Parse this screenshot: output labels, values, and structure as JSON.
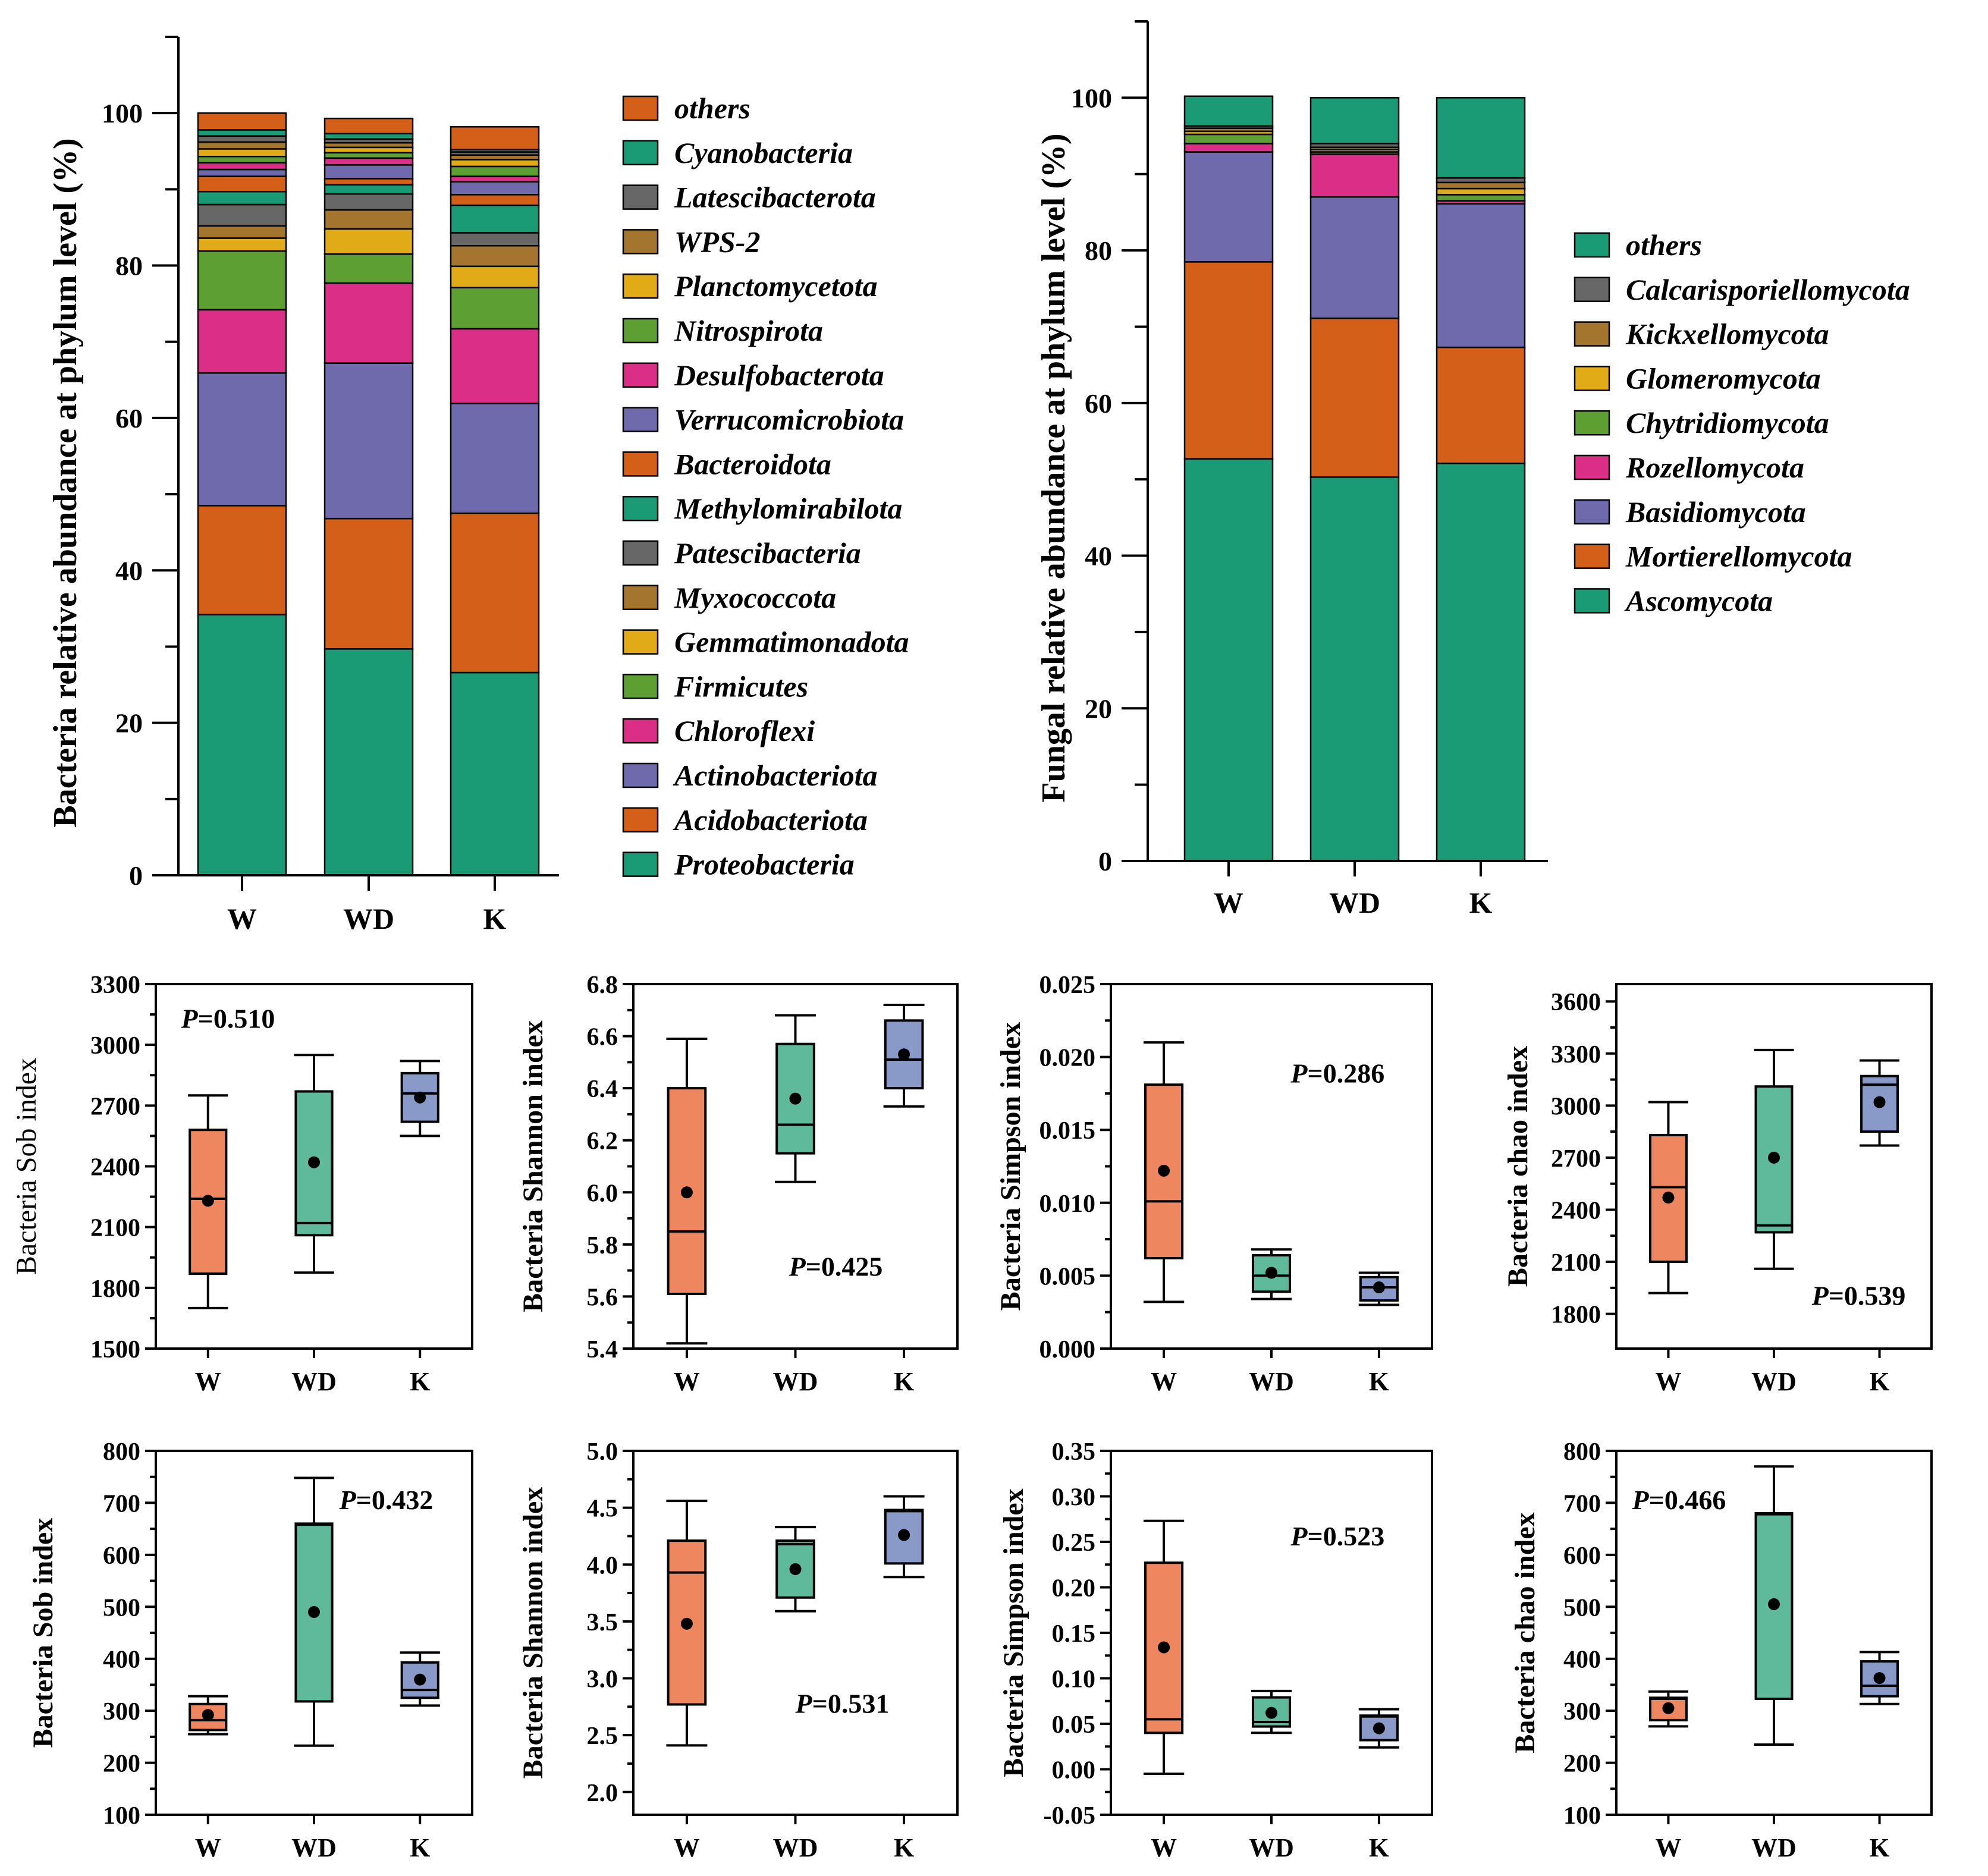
{
  "colors": {
    "green": "#1b9a76",
    "orange": "#d35f18",
    "purple": "#6e6aab",
    "pink": "#db2f87",
    "lightgreen": "#5e9f34",
    "yellow": "#e0ab17",
    "brown": "#a3752f",
    "gray": "#676767",
    "box_w": "#ee8760",
    "box_wd": "#5fba9c",
    "box_k": "#8a9ac8"
  },
  "chart_data": [
    {
      "id": "bacteria-phylum",
      "type": "bar",
      "stacked": true,
      "ylabel": "Bacteria relative abundance at phylum level (%)",
      "ylim": [
        0,
        110
      ],
      "yticks": [
        0,
        20,
        40,
        60,
        80,
        100
      ],
      "categories": [
        "W",
        "WD",
        "K"
      ],
      "series": [
        {
          "name": "Proteobacteria",
          "color": "green",
          "values": [
            34.2,
            29.7,
            26.6
          ]
        },
        {
          "name": "Acidobacteriota",
          "color": "orange",
          "values": [
            14.3,
            17.1,
            20.9
          ]
        },
        {
          "name": "Actinobacteriota",
          "color": "purple",
          "values": [
            17.4,
            20.4,
            14.4
          ]
        },
        {
          "name": "Chloroflexi",
          "color": "pink",
          "values": [
            8.3,
            10.5,
            9.8
          ]
        },
        {
          "name": "Firmicutes",
          "color": "lightgreen",
          "values": [
            7.7,
            3.8,
            5.4
          ]
        },
        {
          "name": "Gemmatimonadota",
          "color": "yellow",
          "values": [
            1.7,
            3.3,
            2.8
          ]
        },
        {
          "name": "Myxococcota",
          "color": "brown",
          "values": [
            1.6,
            2.5,
            2.7
          ]
        },
        {
          "name": "Patescibacteria",
          "color": "gray",
          "values": [
            2.8,
            2.1,
            1.7
          ]
        },
        {
          "name": "Methylomirabilota",
          "color": "green",
          "values": [
            1.7,
            1.2,
            3.6
          ]
        },
        {
          "name": "Bacteroidota",
          "color": "orange",
          "values": [
            2.0,
            0.8,
            1.4
          ]
        },
        {
          "name": "Verrucomicrobiota",
          "color": "purple",
          "values": [
            0.9,
            1.8,
            1.7
          ]
        },
        {
          "name": "Desulfobacterota",
          "color": "pink",
          "values": [
            0.9,
            0.9,
            0.7
          ]
        },
        {
          "name": "Nitrospirota",
          "color": "lightgreen",
          "values": [
            0.8,
            0.7,
            1.3
          ]
        },
        {
          "name": "Planctomycetota",
          "color": "yellow",
          "values": [
            1.0,
            0.7,
            0.9
          ]
        },
        {
          "name": "WPS-2",
          "color": "brown",
          "values": [
            0.9,
            0.6,
            0.6
          ]
        },
        {
          "name": "Latescibacterota",
          "color": "gray",
          "values": [
            0.8,
            0.5,
            0.4
          ]
        },
        {
          "name": "Cyanobacteria",
          "color": "green",
          "values": [
            0.8,
            0.7,
            0.3
          ]
        },
        {
          "name": "others",
          "color": "orange",
          "values": [
            2.2,
            2.0,
            3.0
          ]
        }
      ],
      "legend": [
        "others",
        "Cyanobacteria",
        "Latescibacterota",
        "WPS-2",
        "Planctomycetota",
        "Nitrospirota",
        "Desulfobacterota",
        "Verrucomicrobiota",
        "Bacteroidota",
        "Methylomirabilota",
        "Patescibacteria",
        "Myxococcota",
        "Gemmatimonadota",
        "Firmicutes",
        "Chloroflexi",
        "Actinobacteriota",
        "Acidobacteriota",
        "Proteobacteria"
      ]
    },
    {
      "id": "fungi-phylum",
      "type": "bar",
      "stacked": true,
      "ylabel": "Fungal relative abundance at phylum level (%)",
      "ylim": [
        0,
        110
      ],
      "yticks": [
        0,
        20,
        40,
        60,
        80,
        100
      ],
      "categories": [
        "W",
        "WD",
        "K"
      ],
      "series": [
        {
          "name": "Ascomycota",
          "color": "green",
          "values": [
            52.7,
            50.3,
            52.1
          ]
        },
        {
          "name": "Mortierellomycota",
          "color": "orange",
          "values": [
            25.8,
            20.8,
            15.2
          ]
        },
        {
          "name": "Basidiomycota",
          "color": "purple",
          "values": [
            14.4,
            15.9,
            18.8
          ]
        },
        {
          "name": "Rozellomycota",
          "color": "pink",
          "values": [
            1.1,
            5.6,
            0.4
          ]
        },
        {
          "name": "Chytridiomycota",
          "color": "lightgreen",
          "values": [
            1.2,
            0.3,
            0.8
          ]
        },
        {
          "name": "Glomeromycota",
          "color": "yellow",
          "values": [
            0.4,
            0.3,
            0.8
          ]
        },
        {
          "name": "Kickxellomycota",
          "color": "brown",
          "values": [
            0.4,
            0.3,
            0.8
          ]
        },
        {
          "name": "Calcarisporiellomycota",
          "color": "gray",
          "values": [
            0.3,
            0.5,
            0.6
          ]
        },
        {
          "name": "others",
          "color": "green",
          "values": [
            3.9,
            6.0,
            10.5
          ]
        }
      ],
      "legend": [
        "others",
        "Calcarisporiellomycota",
        "Kickxellomycota",
        "Glomeromycota",
        "Chytridiomycota",
        "Rozellomycota",
        "Basidiomycota",
        "Mortierellomycota",
        "Ascomycota"
      ]
    },
    {
      "id": "bact-sob",
      "type": "box",
      "ylabel": "Bacteria Sob index",
      "ylabel_bold": false,
      "ylim": [
        1500,
        3300
      ],
      "yticks": [
        1500,
        1800,
        2100,
        2400,
        2700,
        3000,
        3300
      ],
      "categories": [
        "W",
        "WD",
        "K"
      ],
      "boxes": [
        {
          "min": 1700,
          "q1": 1870,
          "median": 2240,
          "q3": 2580,
          "max": 2750,
          "mean": 2230
        },
        {
          "min": 1875,
          "q1": 2060,
          "median": 2120,
          "q3": 2770,
          "max": 2950,
          "mean": 2420
        },
        {
          "min": 2550,
          "q1": 2620,
          "median": 2760,
          "q3": 2860,
          "max": 2920,
          "mean": 2740
        }
      ],
      "p_prefix": "P",
      "p_value": "=0.510",
      "p_pos": [
        0.08,
        0.88
      ]
    },
    {
      "id": "bact-shannon",
      "type": "box",
      "ylabel": "Bacteria Shannon index",
      "ylabel_bold": true,
      "ylim": [
        5.4,
        6.8
      ],
      "yticks": [
        5.4,
        5.6,
        5.8,
        6.0,
        6.2,
        6.4,
        6.6,
        6.8
      ],
      "ydec": 1,
      "categories": [
        "W",
        "WD",
        "K"
      ],
      "boxes": [
        {
          "min": 5.42,
          "q1": 5.61,
          "median": 5.85,
          "q3": 6.4,
          "max": 6.59,
          "mean": 6.0
        },
        {
          "min": 6.04,
          "q1": 6.15,
          "median": 6.26,
          "q3": 6.57,
          "max": 6.68,
          "mean": 6.36
        },
        {
          "min": 6.33,
          "q1": 6.4,
          "median": 6.51,
          "q3": 6.66,
          "max": 6.72,
          "mean": 6.53
        }
      ],
      "p_prefix": "P",
      "p_value": "=0.425",
      "p_pos": [
        0.48,
        0.2
      ]
    },
    {
      "id": "bact-simpson",
      "type": "box",
      "ylabel": "Bacteria Simpson index",
      "ylabel_bold": true,
      "ylim": [
        0.0,
        0.025
      ],
      "yticks": [
        0.0,
        0.005,
        0.01,
        0.015,
        0.02,
        0.025
      ],
      "ydec": 3,
      "categories": [
        "W",
        "WD",
        "K"
      ],
      "boxes": [
        {
          "min": 0.0032,
          "q1": 0.0062,
          "median": 0.0101,
          "q3": 0.0181,
          "max": 0.021,
          "mean": 0.0122
        },
        {
          "min": 0.0034,
          "q1": 0.0039,
          "median": 0.005,
          "q3": 0.0064,
          "max": 0.0068,
          "mean": 0.0052
        },
        {
          "min": 0.003,
          "q1": 0.0033,
          "median": 0.0042,
          "q3": 0.0049,
          "max": 0.0052,
          "mean": 0.0042
        }
      ],
      "p_prefix": "P",
      "p_value": "=0.286",
      "p_pos": [
        0.56,
        0.73
      ]
    },
    {
      "id": "bact-chao",
      "type": "box",
      "ylabel": "Bacteria chao index",
      "ylabel_bold": true,
      "ylim": [
        1600,
        3700
      ],
      "yticks": [
        1800,
        2100,
        2400,
        2700,
        3000,
        3300,
        3600
      ],
      "categories": [
        "W",
        "WD",
        "K"
      ],
      "boxes": [
        {
          "min": 1920,
          "q1": 2100,
          "median": 2530,
          "q3": 2830,
          "max": 3020,
          "mean": 2470
        },
        {
          "min": 2060,
          "q1": 2270,
          "median": 2310,
          "q3": 3110,
          "max": 3320,
          "mean": 2700
        },
        {
          "min": 2770,
          "q1": 2850,
          "median": 3120,
          "q3": 3170,
          "max": 3260,
          "mean": 3020
        }
      ],
      "p_prefix": "P",
      "p_value": "=0.539",
      "p_pos": [
        0.62,
        0.12
      ]
    },
    {
      "id": "fung-sob",
      "type": "box",
      "ylabel": "Bacteria Sob index",
      "ylabel_bold": true,
      "ylim": [
        100,
        800
      ],
      "yticks": [
        100,
        200,
        300,
        400,
        500,
        600,
        700,
        800
      ],
      "categories": [
        "W",
        "WD",
        "K"
      ],
      "boxes": [
        {
          "min": 255,
          "q1": 263,
          "median": 282,
          "q3": 313,
          "max": 328,
          "mean": 292
        },
        {
          "min": 233,
          "q1": 318,
          "median": 658,
          "q3": 660,
          "max": 748,
          "mean": 490
        },
        {
          "min": 310,
          "q1": 325,
          "median": 340,
          "q3": 393,
          "max": 412,
          "mean": 360
        }
      ],
      "p_prefix": "P",
      "p_value": "=0.432",
      "p_pos": [
        0.58,
        0.84
      ]
    },
    {
      "id": "fung-shannon",
      "type": "box",
      "ylabel": "Bacteria Shannon index",
      "ylabel_bold": true,
      "ylim": [
        1.8,
        5.0
      ],
      "yticks": [
        2.0,
        2.5,
        3.0,
        3.5,
        4.0,
        4.5,
        5.0
      ],
      "ydec": 1,
      "categories": [
        "W",
        "WD",
        "K"
      ],
      "boxes": [
        {
          "min": 2.41,
          "q1": 2.77,
          "median": 3.93,
          "q3": 4.21,
          "max": 4.56,
          "mean": 3.48
        },
        {
          "min": 3.59,
          "q1": 3.71,
          "median": 4.18,
          "q3": 4.21,
          "max": 4.33,
          "mean": 3.96
        },
        {
          "min": 3.89,
          "q1": 4.01,
          "median": 4.47,
          "q3": 4.48,
          "max": 4.6,
          "mean": 4.26
        }
      ],
      "p_prefix": "P",
      "p_value": "=0.531",
      "p_pos": [
        0.5,
        0.28
      ]
    },
    {
      "id": "fung-simpson",
      "type": "box",
      "ylabel": "Bacteria Simpson index",
      "ylabel_bold": true,
      "ylim": [
        -0.05,
        0.35
      ],
      "yticks": [
        -0.05,
        0.0,
        0.05,
        0.1,
        0.15,
        0.2,
        0.25,
        0.3,
        0.35
      ],
      "ydec": 2,
      "categories": [
        "W",
        "WD",
        "K"
      ],
      "boxes": [
        {
          "min": -0.005,
          "q1": 0.04,
          "median": 0.055,
          "q3": 0.227,
          "max": 0.273,
          "mean": 0.134
        },
        {
          "min": 0.04,
          "q1": 0.047,
          "median": 0.052,
          "q3": 0.079,
          "max": 0.086,
          "mean": 0.062
        },
        {
          "min": 0.024,
          "q1": 0.032,
          "median": 0.058,
          "q3": 0.059,
          "max": 0.066,
          "mean": 0.045
        }
      ],
      "p_prefix": "P",
      "p_value": "=0.523",
      "p_pos": [
        0.56,
        0.74
      ]
    },
    {
      "id": "fung-chao",
      "type": "box",
      "ylabel": "Bacteria chao index",
      "ylabel_bold": true,
      "ylim": [
        100,
        800
      ],
      "yticks": [
        100,
        200,
        300,
        400,
        500,
        600,
        700,
        800
      ],
      "categories": [
        "W",
        "WD",
        "K"
      ],
      "boxes": [
        {
          "min": 270,
          "q1": 282,
          "median": 323,
          "q3": 325,
          "max": 337,
          "mean": 305
        },
        {
          "min": 235,
          "q1": 323,
          "median": 678,
          "q3": 680,
          "max": 770,
          "mean": 505
        },
        {
          "min": 313,
          "q1": 328,
          "median": 348,
          "q3": 395,
          "max": 413,
          "mean": 363
        }
      ],
      "p_prefix": "P",
      "p_value": "=0.466",
      "p_pos": [
        0.05,
        0.84
      ]
    }
  ]
}
